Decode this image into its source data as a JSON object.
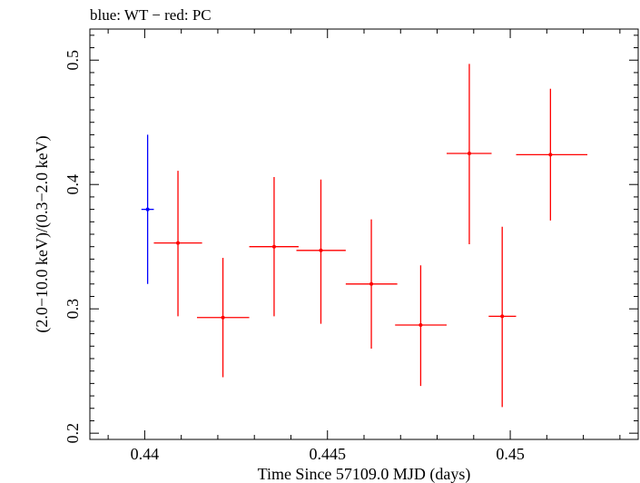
{
  "chart_data": {
    "type": "scatter",
    "title": "blue: WT − red: PC",
    "xlabel": "Time Since 57109.0 MJD (days)",
    "ylabel": "(2.0−10.0 keV)/(0.3−2.0 keV)",
    "xlim": [
      0.4385,
      0.4535
    ],
    "ylim": [
      0.195,
      0.525
    ],
    "x_ticks": [
      {
        "value": 0.44,
        "label": "0.44"
      },
      {
        "value": 0.445,
        "label": "0.445"
      },
      {
        "value": 0.45,
        "label": "0.45"
      }
    ],
    "y_ticks": [
      {
        "value": 0.2,
        "label": "0.2"
      },
      {
        "value": 0.3,
        "label": "0.3"
      },
      {
        "value": 0.4,
        "label": "0.4"
      },
      {
        "value": 0.5,
        "label": "0.5"
      }
    ],
    "grid": false,
    "series": [
      {
        "name": "WT",
        "color": "#0000ff",
        "points": [
          {
            "x": 0.44008,
            "x_lo": 0.43991,
            "x_hi": 0.44025,
            "y": 0.38,
            "y_lo": 0.32,
            "y_hi": 0.44
          }
        ]
      },
      {
        "name": "PC",
        "color": "#ff0000",
        "points": [
          {
            "x": 0.44091,
            "x_lo": 0.44025,
            "x_hi": 0.44157,
            "y": 0.353,
            "y_lo": 0.294,
            "y_hi": 0.411
          },
          {
            "x": 0.44214,
            "x_lo": 0.44143,
            "x_hi": 0.44286,
            "y": 0.293,
            "y_lo": 0.245,
            "y_hi": 0.341
          },
          {
            "x": 0.44354,
            "x_lo": 0.44286,
            "x_hi": 0.44421,
            "y": 0.35,
            "y_lo": 0.294,
            "y_hi": 0.406
          },
          {
            "x": 0.44482,
            "x_lo": 0.44415,
            "x_hi": 0.4455,
            "y": 0.347,
            "y_lo": 0.288,
            "y_hi": 0.404
          },
          {
            "x": 0.4462,
            "x_lo": 0.4455,
            "x_hi": 0.44691,
            "y": 0.32,
            "y_lo": 0.268,
            "y_hi": 0.372
          },
          {
            "x": 0.44755,
            "x_lo": 0.44685,
            "x_hi": 0.44826,
            "y": 0.287,
            "y_lo": 0.238,
            "y_hi": 0.335
          },
          {
            "x": 0.44888,
            "x_lo": 0.44826,
            "x_hi": 0.44949,
            "y": 0.425,
            "y_lo": 0.352,
            "y_hi": 0.497
          },
          {
            "x": 0.44978,
            "x_lo": 0.44941,
            "x_hi": 0.45016,
            "y": 0.294,
            "y_lo": 0.221,
            "y_hi": 0.366
          },
          {
            "x": 0.4511,
            "x_lo": 0.45016,
            "x_hi": 0.45211,
            "y": 0.424,
            "y_lo": 0.371,
            "y_hi": 0.477
          }
        ]
      }
    ]
  }
}
